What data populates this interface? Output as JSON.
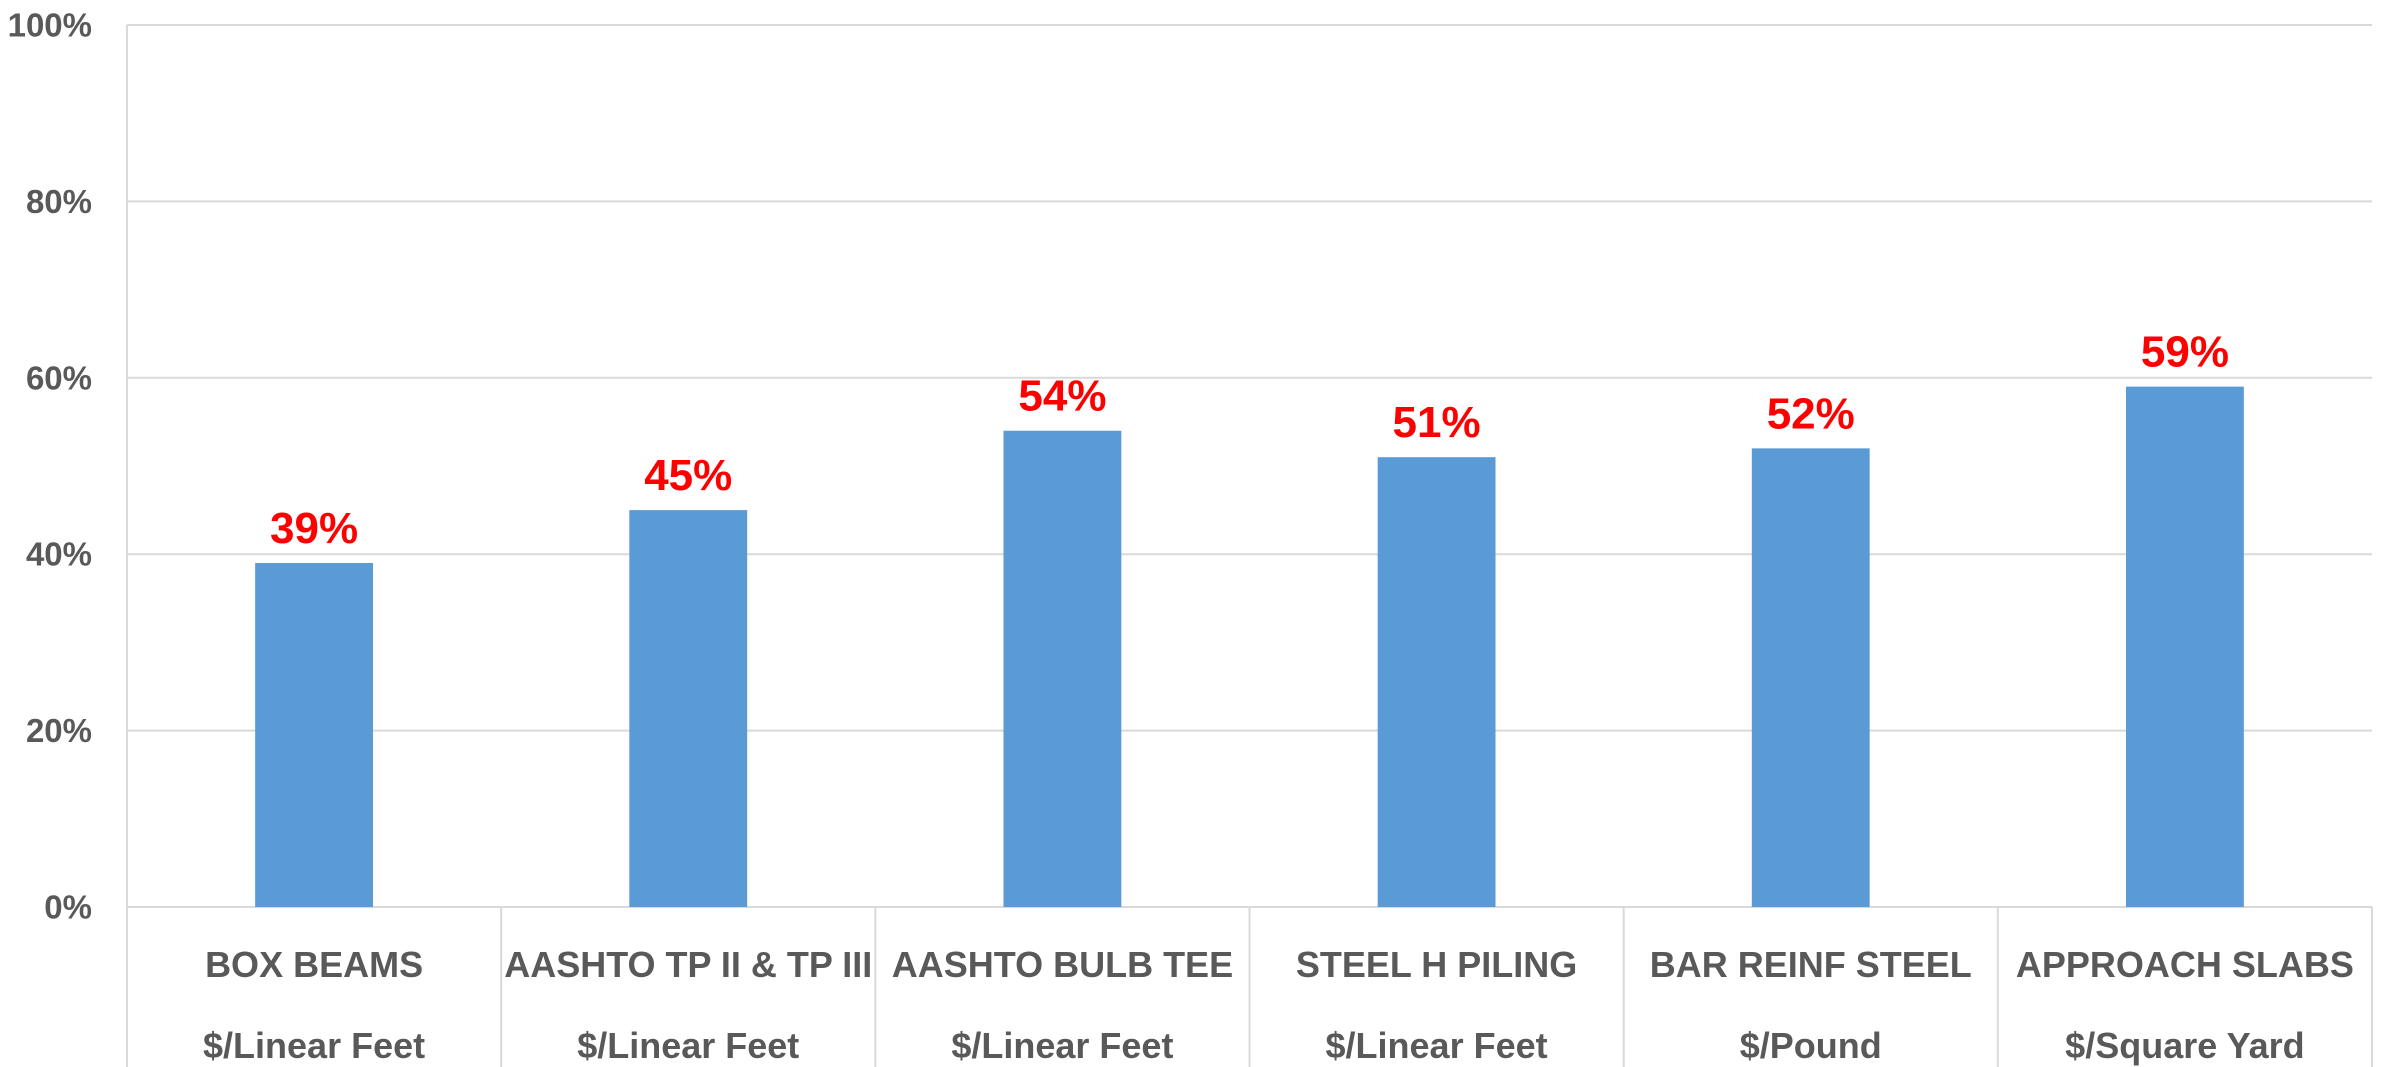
{
  "chart_data": {
    "type": "bar",
    "categories": [
      [
        "BOX BEAMS",
        "$/Linear Feet"
      ],
      [
        "AASHTO TP II & TP III",
        "$/Linear Feet"
      ],
      [
        "AASHTO BULB TEE",
        "$/Linear Feet"
      ],
      [
        "STEEL H PILING",
        "$/Linear Feet"
      ],
      [
        "BAR REINF STEEL",
        "$/Pound"
      ],
      [
        "APPROACH SLABS",
        "$/Square Yard"
      ]
    ],
    "values": [
      0.39,
      0.45,
      0.54,
      0.51,
      0.52,
      0.59
    ],
    "data_labels": [
      "39%",
      "45%",
      "54%",
      "51%",
      "52%",
      "59%"
    ],
    "y_ticks": [
      {
        "value": 0,
        "label": "0%"
      },
      {
        "value": 0.2,
        "label": "20%"
      },
      {
        "value": 0.4,
        "label": "40%"
      },
      {
        "value": 0.6,
        "label": "60%"
      },
      {
        "value": 0.8,
        "label": "80%"
      },
      {
        "value": 1.0,
        "label": "100%"
      }
    ],
    "ylim": [
      0,
      1
    ],
    "grid": true,
    "legend": "none",
    "title": "",
    "xlabel": "",
    "ylabel": "",
    "colors": {
      "bar": "#5b9bd5",
      "data_label": "#ff0000",
      "axis_text": "#595959",
      "grid": "#d9d9d9"
    }
  }
}
